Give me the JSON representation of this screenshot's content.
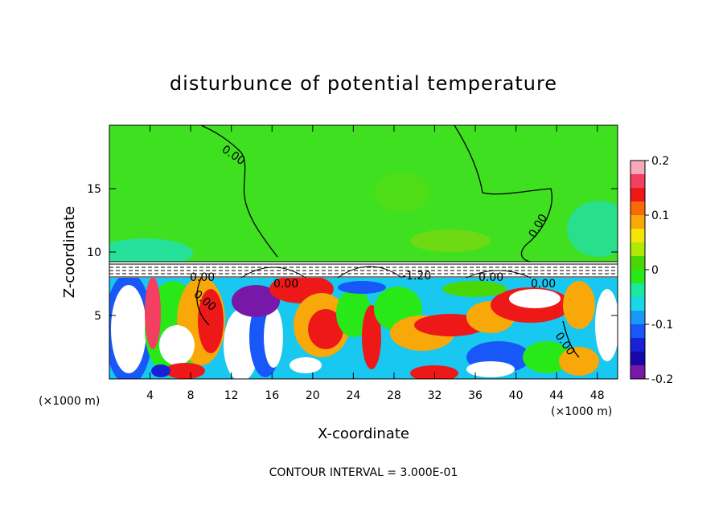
{
  "chart_data": {
    "type": "heatmap",
    "title": "disturbunce of potential temperature",
    "xlabel": "X-coordinate",
    "ylabel": "Z-coordinate",
    "x_unit": "(×1000 m)",
    "x_unit_right": "(×1000 m)",
    "xlim": [
      0,
      50
    ],
    "ylim": [
      0,
      20
    ],
    "x_ticks": [
      4,
      8,
      12,
      16,
      20,
      24,
      28,
      32,
      36,
      40,
      44,
      48
    ],
    "y_ticks": [
      5,
      10,
      15
    ],
    "colorbar": {
      "range": [
        -0.2,
        0.2
      ],
      "ticks": [
        "0.2",
        "0.1",
        "0",
        "-0.1",
        "-0.2"
      ],
      "colors": [
        "#f8a8b8",
        "#f44060",
        "#ee1818",
        "#f86a08",
        "#f8a808",
        "#f4e408",
        "#b0e808",
        "#48d808",
        "#28e818",
        "#18e8a0",
        "#18d8e8",
        "#1898f8",
        "#1858f8",
        "#1820d8",
        "#1808a8",
        "#7818a8"
      ]
    },
    "contour_labels": [
      "0.00",
      "0.00",
      "0.00",
      "0.00",
      "0.00",
      "-1.20",
      "0.00",
      "0.00",
      "0.00"
    ],
    "footer": "CONTOUR INTERVAL = 3.000E-01"
  }
}
